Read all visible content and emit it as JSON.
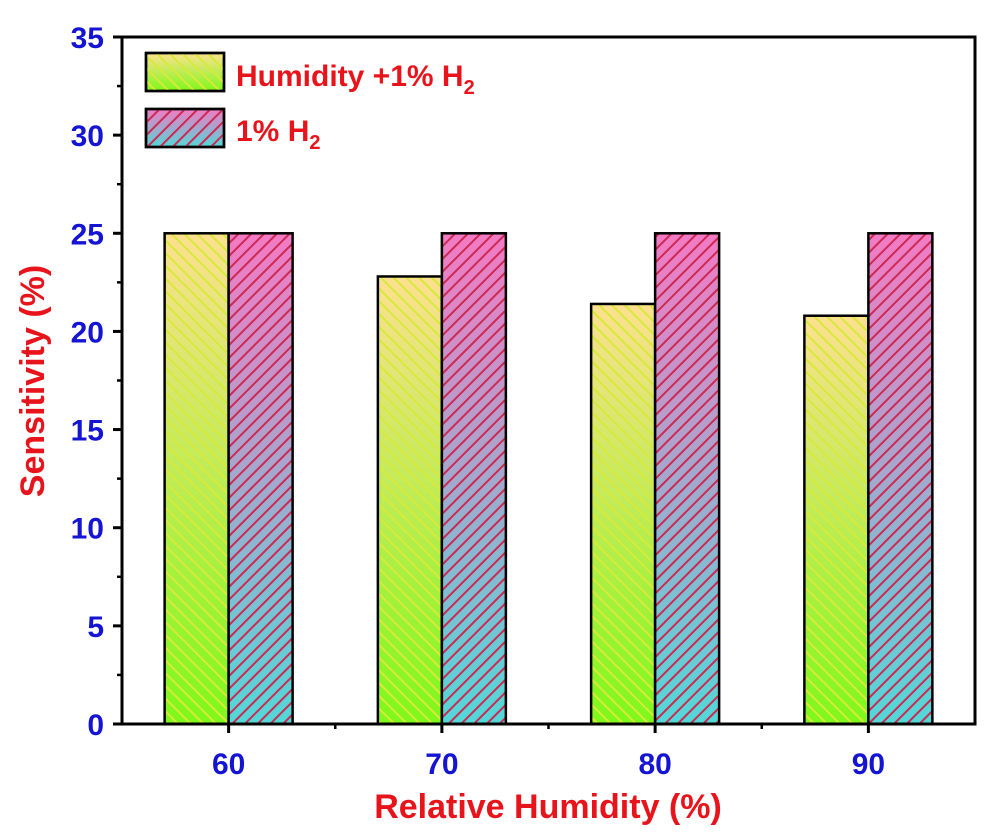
{
  "chart_data": {
    "type": "bar",
    "categories": [
      "60",
      "70",
      "80",
      "90"
    ],
    "series": [
      {
        "name": "Humidity +1% H",
        "name_sub": "2",
        "values": [
          25.0,
          22.8,
          21.4,
          20.8
        ]
      },
      {
        "name": "1% H",
        "name_sub": "2",
        "values": [
          25.0,
          25.0,
          25.0,
          25.0
        ]
      }
    ],
    "xlabel": "Relative Humidity (%)",
    "ylabel": "Sensitivity (%)",
    "ylim": [
      0,
      35
    ],
    "yticks": [
      "0",
      "5",
      "10",
      "15",
      "20",
      "25",
      "30",
      "35"
    ],
    "grid": false,
    "legend_position": "top-left"
  },
  "colors": {
    "axis_label": "#e8141b",
    "tick_label": "#1414d2",
    "legend_text": "#e8141b",
    "axis": "#000000",
    "series1_gradient": [
      "#fde090",
      "#7ef81a"
    ],
    "series1_stripe": "#d7ea3a",
    "series2_gradient": [
      "#f37ac4",
      "#52d8d8"
    ],
    "series2_stripe": "#cc2a52"
  }
}
